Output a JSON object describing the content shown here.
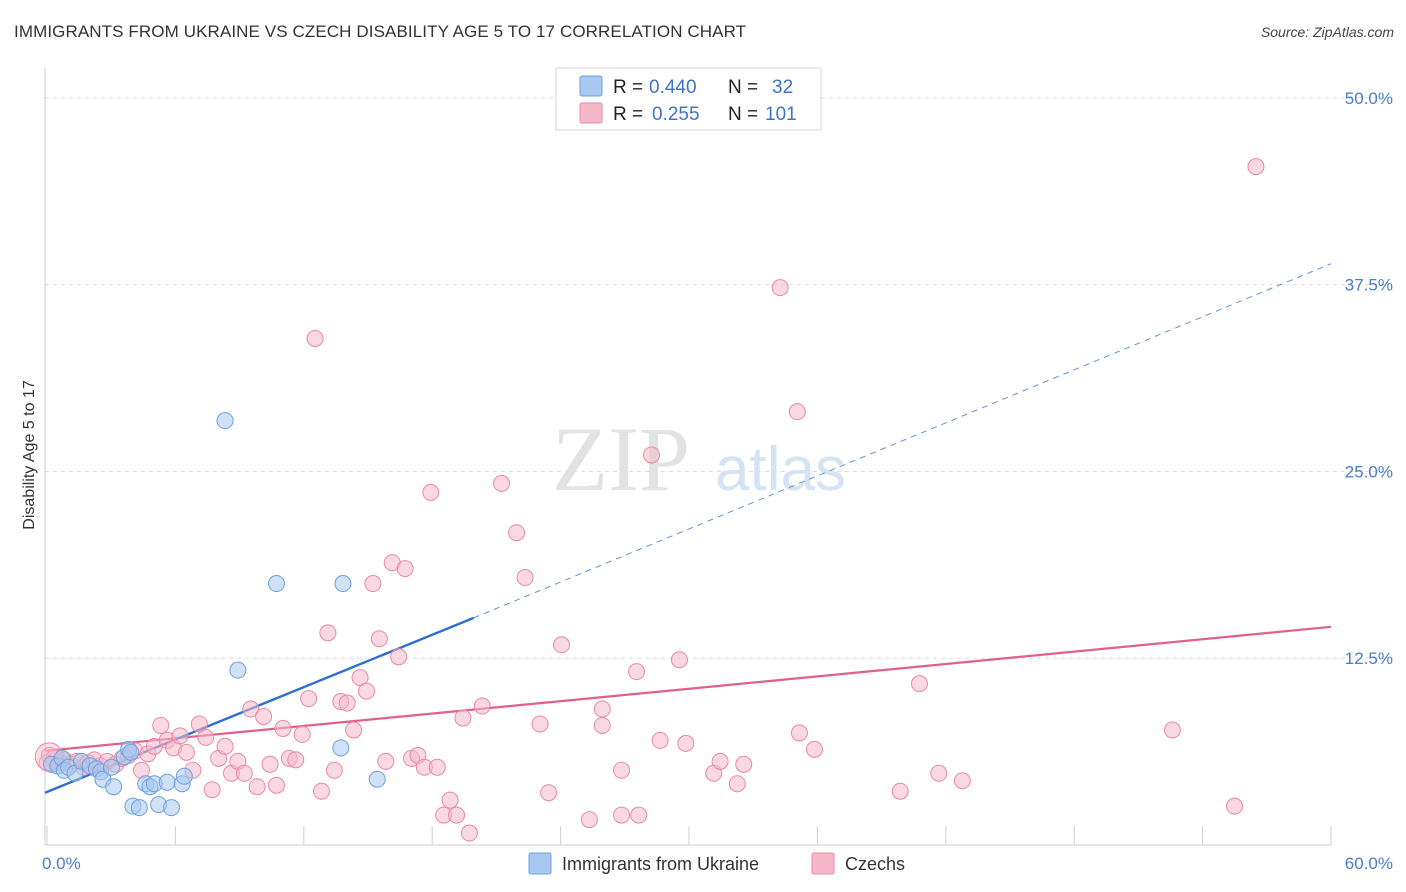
{
  "title": "IMMIGRANTS FROM UKRAINE VS CZECH DISABILITY AGE 5 TO 17 CORRELATION CHART",
  "source": "Source: ZipAtlas.com",
  "watermark": {
    "zip": "ZIP",
    "atlas": "atlas"
  },
  "legend_top": [
    {
      "r_label": "R = ",
      "r_value": "0.440",
      "n_label": "N = ",
      "n_value": "32",
      "color": "#a8c8f0"
    },
    {
      "r_label": "R = ",
      "r_value": "0.255",
      "n_label": "N = ",
      "n_value": "101",
      "color": "#f6b8cb"
    }
  ],
  "colors": {
    "ukraine_fill": "#a8c8f0",
    "ukraine_stroke": "#6fa0dc",
    "ukraine_line": "#2d6fd0",
    "czech_fill": "#f6b8cb",
    "czech_stroke": "#e889a6",
    "czech_line": "#e0608c",
    "tick_label": "#4a7cc9",
    "grid": "#dddddd"
  },
  "chart_data": {
    "type": "scatter",
    "title": "IMMIGRANTS FROM UKRAINE VS CZECH DISABILITY AGE 5 TO 17 CORRELATION CHART",
    "xlabel": "",
    "ylabel": "Disability Age 5 to 17",
    "xlim": [
      0,
      60
    ],
    "ylim": [
      0,
      52
    ],
    "x_tick_labels": [
      "0.0%",
      "60.0%"
    ],
    "y_tick_labels": [
      "12.5%",
      "25.0%",
      "37.5%",
      "50.0%"
    ],
    "y_ticks": [
      12.5,
      25.0,
      37.5,
      50.0
    ],
    "grid": true,
    "legend_position": "bottom",
    "series": [
      {
        "name": "Immigrants from Ukraine",
        "R": 0.44,
        "N": 32,
        "trend": {
          "x0": 0,
          "y0": 3.5,
          "x1": 20,
          "y1": 15.2,
          "dashed_to_x": 60,
          "dashed_to_y": 38.9
        },
        "points": [
          [
            0.3,
            5.4
          ],
          [
            0.6,
            5.3
          ],
          [
            0.8,
            5.8
          ],
          [
            0.9,
            5.0
          ],
          [
            1.1,
            5.2
          ],
          [
            1.4,
            4.8
          ],
          [
            1.7,
            5.6
          ],
          [
            2.1,
            5.3
          ],
          [
            2.4,
            5.1
          ],
          [
            2.6,
            4.9
          ],
          [
            2.7,
            4.4
          ],
          [
            3.1,
            5.2
          ],
          [
            3.2,
            3.9
          ],
          [
            3.7,
            5.9
          ],
          [
            3.9,
            6.4
          ],
          [
            4.0,
            6.2
          ],
          [
            4.1,
            2.6
          ],
          [
            4.4,
            2.5
          ],
          [
            4.7,
            4.1
          ],
          [
            4.9,
            3.9
          ],
          [
            5.1,
            4.1
          ],
          [
            5.3,
            2.7
          ],
          [
            5.7,
            4.2
          ],
          [
            5.9,
            2.5
          ],
          [
            6.4,
            4.1
          ],
          [
            6.5,
            4.6
          ],
          [
            8.4,
            28.4
          ],
          [
            9.0,
            11.7
          ],
          [
            10.8,
            17.5
          ],
          [
            13.9,
            17.5
          ],
          [
            13.8,
            6.5
          ],
          [
            15.5,
            4.4
          ]
        ]
      },
      {
        "name": "Czechs",
        "R": 0.255,
        "N": 101,
        "trend": {
          "x0": 0,
          "y0": 6.3,
          "x1": 60,
          "y1": 14.6
        },
        "points": [
          [
            0.2,
            6.0
          ],
          [
            0.4,
            5.8
          ],
          [
            0.7,
            5.5
          ],
          [
            0.9,
            5.7
          ],
          [
            1.2,
            5.4
          ],
          [
            1.5,
            5.6
          ],
          [
            1.8,
            5.2
          ],
          [
            2.0,
            5.5
          ],
          [
            2.3,
            5.7
          ],
          [
            2.6,
            5.3
          ],
          [
            2.9,
            5.6
          ],
          [
            3.3,
            5.4
          ],
          [
            3.6,
            5.8
          ],
          [
            3.9,
            6.0
          ],
          [
            4.2,
            6.3
          ],
          [
            4.5,
            5.0
          ],
          [
            4.8,
            6.1
          ],
          [
            5.1,
            6.6
          ],
          [
            5.4,
            8.0
          ],
          [
            5.7,
            7.0
          ],
          [
            6.0,
            6.5
          ],
          [
            6.3,
            7.3
          ],
          [
            6.6,
            6.2
          ],
          [
            6.9,
            5.0
          ],
          [
            7.2,
            8.1
          ],
          [
            7.5,
            7.2
          ],
          [
            7.8,
            3.7
          ],
          [
            8.1,
            5.8
          ],
          [
            8.4,
            6.6
          ],
          [
            8.7,
            4.8
          ],
          [
            9.0,
            5.6
          ],
          [
            9.3,
            4.8
          ],
          [
            9.6,
            9.1
          ],
          [
            9.9,
            3.9
          ],
          [
            10.2,
            8.6
          ],
          [
            10.5,
            5.4
          ],
          [
            10.8,
            4.0
          ],
          [
            11.1,
            7.8
          ],
          [
            11.4,
            5.8
          ],
          [
            11.7,
            5.7
          ],
          [
            12.0,
            7.4
          ],
          [
            12.3,
            9.8
          ],
          [
            12.6,
            33.9
          ],
          [
            12.9,
            3.6
          ],
          [
            13.2,
            14.2
          ],
          [
            13.5,
            5.0
          ],
          [
            13.8,
            9.6
          ],
          [
            14.1,
            9.5
          ],
          [
            14.4,
            7.7
          ],
          [
            14.7,
            11.2
          ],
          [
            15.0,
            10.3
          ],
          [
            15.3,
            17.5
          ],
          [
            15.6,
            13.8
          ],
          [
            15.9,
            5.6
          ],
          [
            16.2,
            18.9
          ],
          [
            16.5,
            12.6
          ],
          [
            16.8,
            18.5
          ],
          [
            17.1,
            5.8
          ],
          [
            17.4,
            6.0
          ],
          [
            17.7,
            5.2
          ],
          [
            18.0,
            23.6
          ],
          [
            18.3,
            5.2
          ],
          [
            18.6,
            2.0
          ],
          [
            18.9,
            3.0
          ],
          [
            19.2,
            2.0
          ],
          [
            19.5,
            8.5
          ],
          [
            19.8,
            0.8
          ],
          [
            20.4,
            9.3
          ],
          [
            21.3,
            24.2
          ],
          [
            22.0,
            20.9
          ],
          [
            22.4,
            17.9
          ],
          [
            23.1,
            8.1
          ],
          [
            23.5,
            3.5
          ],
          [
            24.1,
            13.4
          ],
          [
            25.4,
            1.7
          ],
          [
            26.0,
            9.1
          ],
          [
            26.0,
            8.0
          ],
          [
            26.9,
            5.0
          ],
          [
            26.9,
            2.0
          ],
          [
            27.6,
            11.6
          ],
          [
            27.7,
            2.0
          ],
          [
            28.3,
            26.1
          ],
          [
            28.7,
            7.0
          ],
          [
            29.6,
            12.4
          ],
          [
            29.9,
            6.8
          ],
          [
            31.2,
            4.8
          ],
          [
            31.5,
            5.6
          ],
          [
            32.3,
            4.1
          ],
          [
            32.6,
            5.4
          ],
          [
            35.1,
            29.0
          ],
          [
            35.2,
            7.5
          ],
          [
            35.9,
            6.4
          ],
          [
            34.3,
            37.3
          ],
          [
            39.9,
            3.6
          ],
          [
            40.8,
            10.8
          ],
          [
            41.7,
            4.8
          ],
          [
            42.8,
            4.3
          ],
          [
            52.6,
            7.7
          ],
          [
            55.5,
            2.6
          ],
          [
            56.5,
            45.4
          ],
          [
            0.1,
            5.5
          ]
        ]
      }
    ]
  }
}
